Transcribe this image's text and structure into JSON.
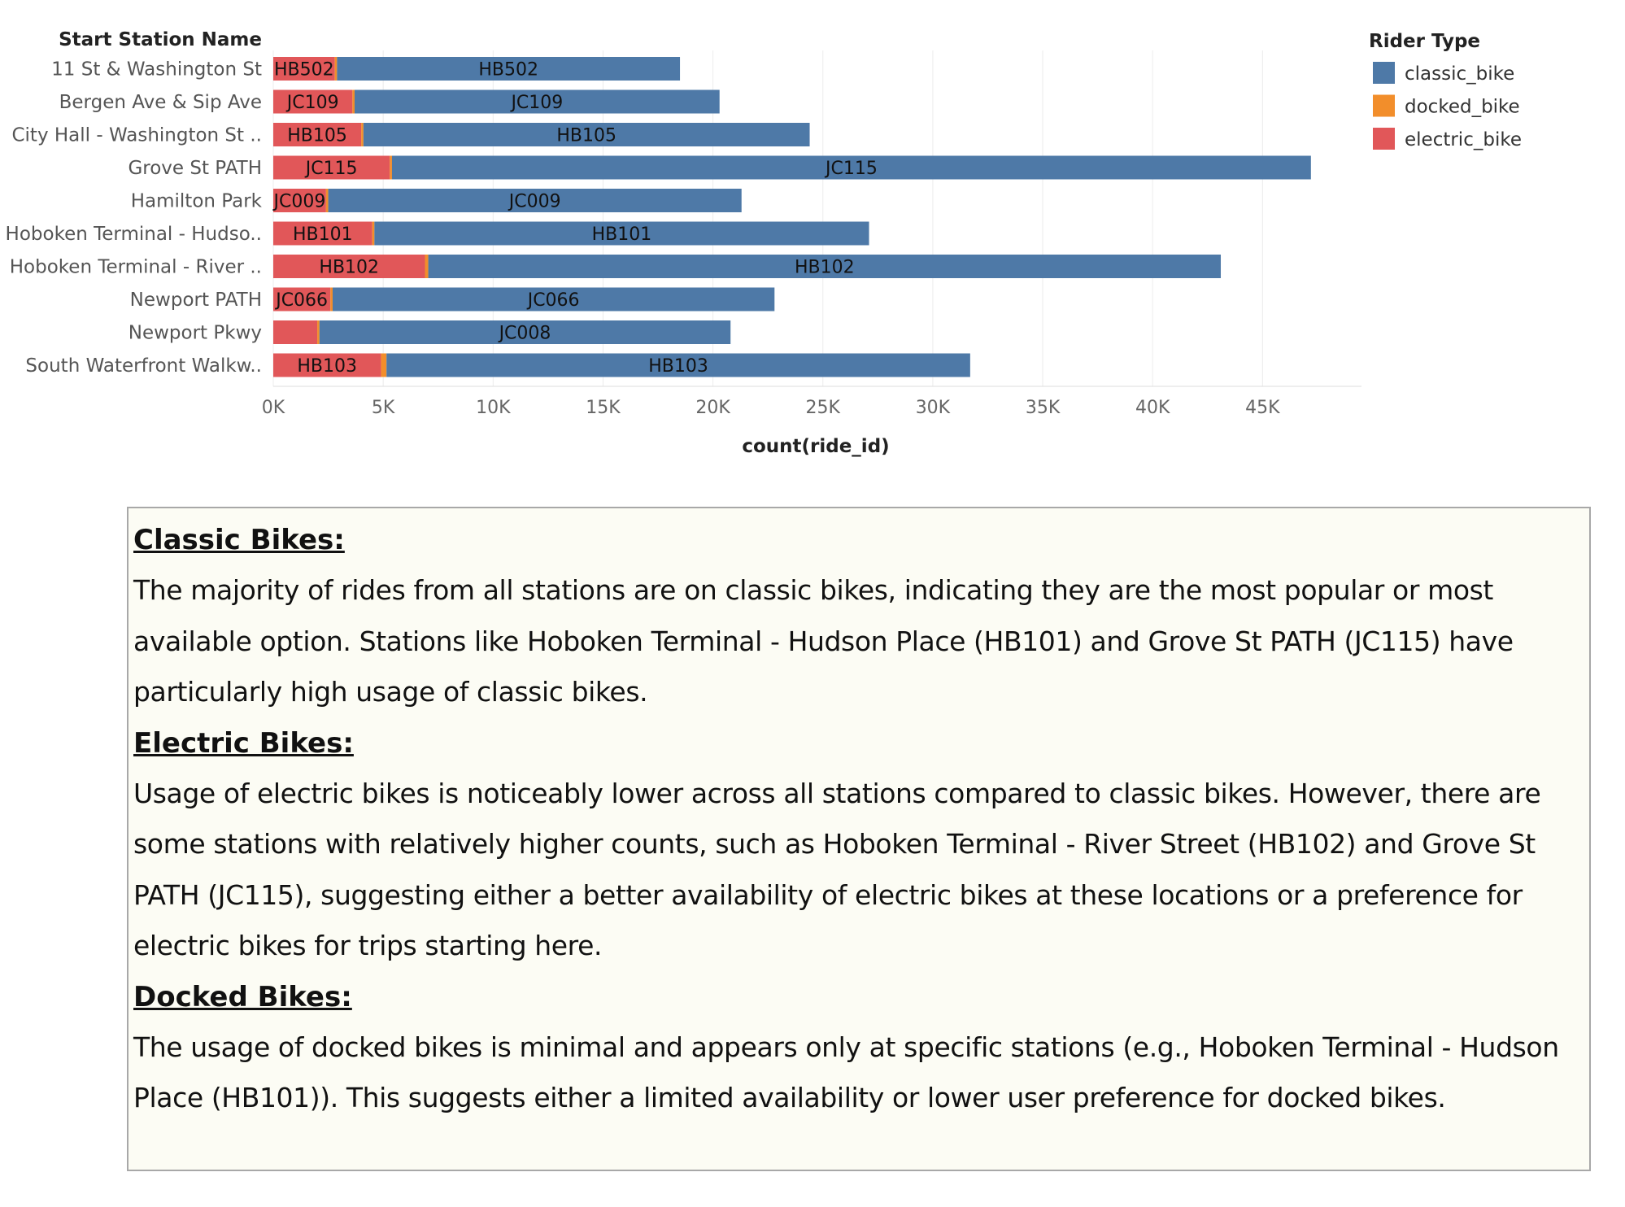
{
  "chart_data": {
    "type": "bar",
    "orientation": "horizontal",
    "stacked": true,
    "ylabel": "Start Station Name",
    "xlabel": "count(ride_id)",
    "xlim": [
      0,
      49500
    ],
    "xticks": [
      "0K",
      "5K",
      "10K",
      "15K",
      "20K",
      "25K",
      "30K",
      "35K",
      "40K",
      "45K"
    ],
    "xtick_values": [
      0,
      5000,
      10000,
      15000,
      20000,
      25000,
      30000,
      35000,
      40000,
      45000
    ],
    "grid": true,
    "legend_title": "Rider Type",
    "legend_position": "top-right",
    "categories": [
      "11 St & Washington St",
      "Bergen Ave & Sip Ave",
      "City Hall - Washington St ..",
      "Grove St PATH",
      "Hamilton Park",
      "Hoboken Terminal - Hudso..",
      "Hoboken Terminal - River ..",
      "Newport PATH",
      "Newport Pkwy",
      "South Waterfront Walkw.."
    ],
    "station_ids": [
      "HB502",
      "JC109",
      "HB105",
      "JC115",
      "JC009",
      "HB101",
      "HB102",
      "JC066",
      "JC008",
      "HB103"
    ],
    "electric_labels": [
      "HB502",
      "JC109",
      "HB105",
      "JC115",
      "JC009",
      "HB101",
      "HB102",
      "JC066",
      "",
      "HB103"
    ],
    "series": [
      {
        "name": "electric_bike",
        "color": "#e15759",
        "values": [
          2800,
          3600,
          4000,
          5300,
          2400,
          4500,
          6900,
          2600,
          2000,
          4900
        ]
      },
      {
        "name": "docked_bike",
        "color": "#f28e2b",
        "values": [
          100,
          100,
          100,
          100,
          100,
          100,
          150,
          100,
          100,
          250
        ]
      },
      {
        "name": "classic_bike",
        "color": "#4e79a7",
        "values": [
          15600,
          16600,
          20300,
          41800,
          18800,
          22500,
          36050,
          20100,
          18700,
          26550
        ]
      }
    ],
    "legend_order": [
      "classic_bike",
      "docked_bike",
      "electric_bike"
    ]
  },
  "notes": {
    "classic_heading": "Classic Bikes:",
    "classic_body": "The majority of rides from all stations are on classic bikes, indicating they are the most popular or most available option. Stations like Hoboken Terminal - Hudson Place (HB101) and Grove St PATH (JC115) have particularly high usage of classic bikes.",
    "electric_heading": "Electric Bikes:",
    "electric_body": "Usage of electric bikes is noticeably lower across all stations compared to classic bikes. However, there are some stations with relatively higher counts, such as Hoboken Terminal - River Street (HB102) and Grove St PATH (JC115), suggesting either a better availability of electric bikes at these locations or a preference for electric bikes for trips starting here.",
    "docked_heading": "Docked Bikes:",
    "docked_body": "The usage of docked bikes is minimal and appears only at specific stations (e.g., Hoboken Terminal - Hudson Place (HB101)). This suggests either a limited availability or lower user preference for docked bikes."
  }
}
